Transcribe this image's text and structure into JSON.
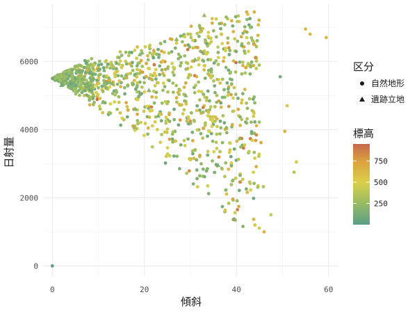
{
  "chart_data": {
    "type": "scatter",
    "xlabel": "傾斜",
    "ylabel": "日射量",
    "xlim": [
      -2,
      62
    ],
    "ylim": [
      -300,
      7700
    ],
    "x_ticks": [
      0,
      20,
      40,
      60
    ],
    "y_ticks": [
      0,
      2000,
      4000,
      6000
    ],
    "grid": true,
    "shape_legend": {
      "title": "区分",
      "position": "right",
      "items": [
        {
          "label": "自然地形",
          "shape": "circle"
        },
        {
          "label": "遺跡立地",
          "shape": "triangle"
        }
      ]
    },
    "color_legend": {
      "title": "標高",
      "position": "right",
      "range": [
        0,
        950
      ],
      "ticks": [
        250,
        500,
        750
      ],
      "gradient": [
        "#5a9e86",
        "#9bbd62",
        "#d9cf4a",
        "#dba33e",
        "#c8684c"
      ]
    },
    "outlier_points": [
      {
        "x": 0,
        "y": 0,
        "elev": 30
      },
      {
        "x": 55,
        "y": 6950,
        "elev": 620
      },
      {
        "x": 56,
        "y": 6800,
        "elev": 610
      },
      {
        "x": 59.5,
        "y": 6700,
        "elev": 600
      },
      {
        "x": 51,
        "y": 4700,
        "elev": 520
      },
      {
        "x": 50.5,
        "y": 3950,
        "elev": 650
      },
      {
        "x": 53,
        "y": 3050,
        "elev": 520
      },
      {
        "x": 52.5,
        "y": 2750,
        "elev": 380
      },
      {
        "x": 49.5,
        "y": 5550,
        "elev": 120
      },
      {
        "x": 46,
        "y": 1000,
        "elev": 650
      },
      {
        "x": 44,
        "y": 1200,
        "elev": 560
      },
      {
        "x": 47.5,
        "y": 1500,
        "elev": 420
      }
    ],
    "site_points": [
      {
        "x": 2,
        "y": 5300,
        "elev": 130
      },
      {
        "x": 4,
        "y": 5400,
        "elev": 110
      },
      {
        "x": 6,
        "y": 5700,
        "elev": 140
      },
      {
        "x": 7,
        "y": 5150,
        "elev": 120
      },
      {
        "x": 9,
        "y": 5500,
        "elev": 160
      },
      {
        "x": 10,
        "y": 5750,
        "elev": 150
      },
      {
        "x": 11,
        "y": 4800,
        "elev": 200
      },
      {
        "x": 13,
        "y": 5350,
        "elev": 170
      },
      {
        "x": 14,
        "y": 5950,
        "elev": 140
      },
      {
        "x": 16,
        "y": 5600,
        "elev": 210
      },
      {
        "x": 18,
        "y": 4600,
        "elev": 160
      },
      {
        "x": 19,
        "y": 6200,
        "elev": 230
      },
      {
        "x": 21,
        "y": 5150,
        "elev": 180
      },
      {
        "x": 23,
        "y": 4400,
        "elev": 140
      },
      {
        "x": 25,
        "y": 5800,
        "elev": 220
      },
      {
        "x": 27,
        "y": 6650,
        "elev": 250
      },
      {
        "x": 29,
        "y": 5000,
        "elev": 200
      },
      {
        "x": 31,
        "y": 6050,
        "elev": 180
      },
      {
        "x": 33,
        "y": 7350,
        "elev": 260
      },
      {
        "x": 36,
        "y": 2950,
        "elev": 120
      }
    ]
  }
}
